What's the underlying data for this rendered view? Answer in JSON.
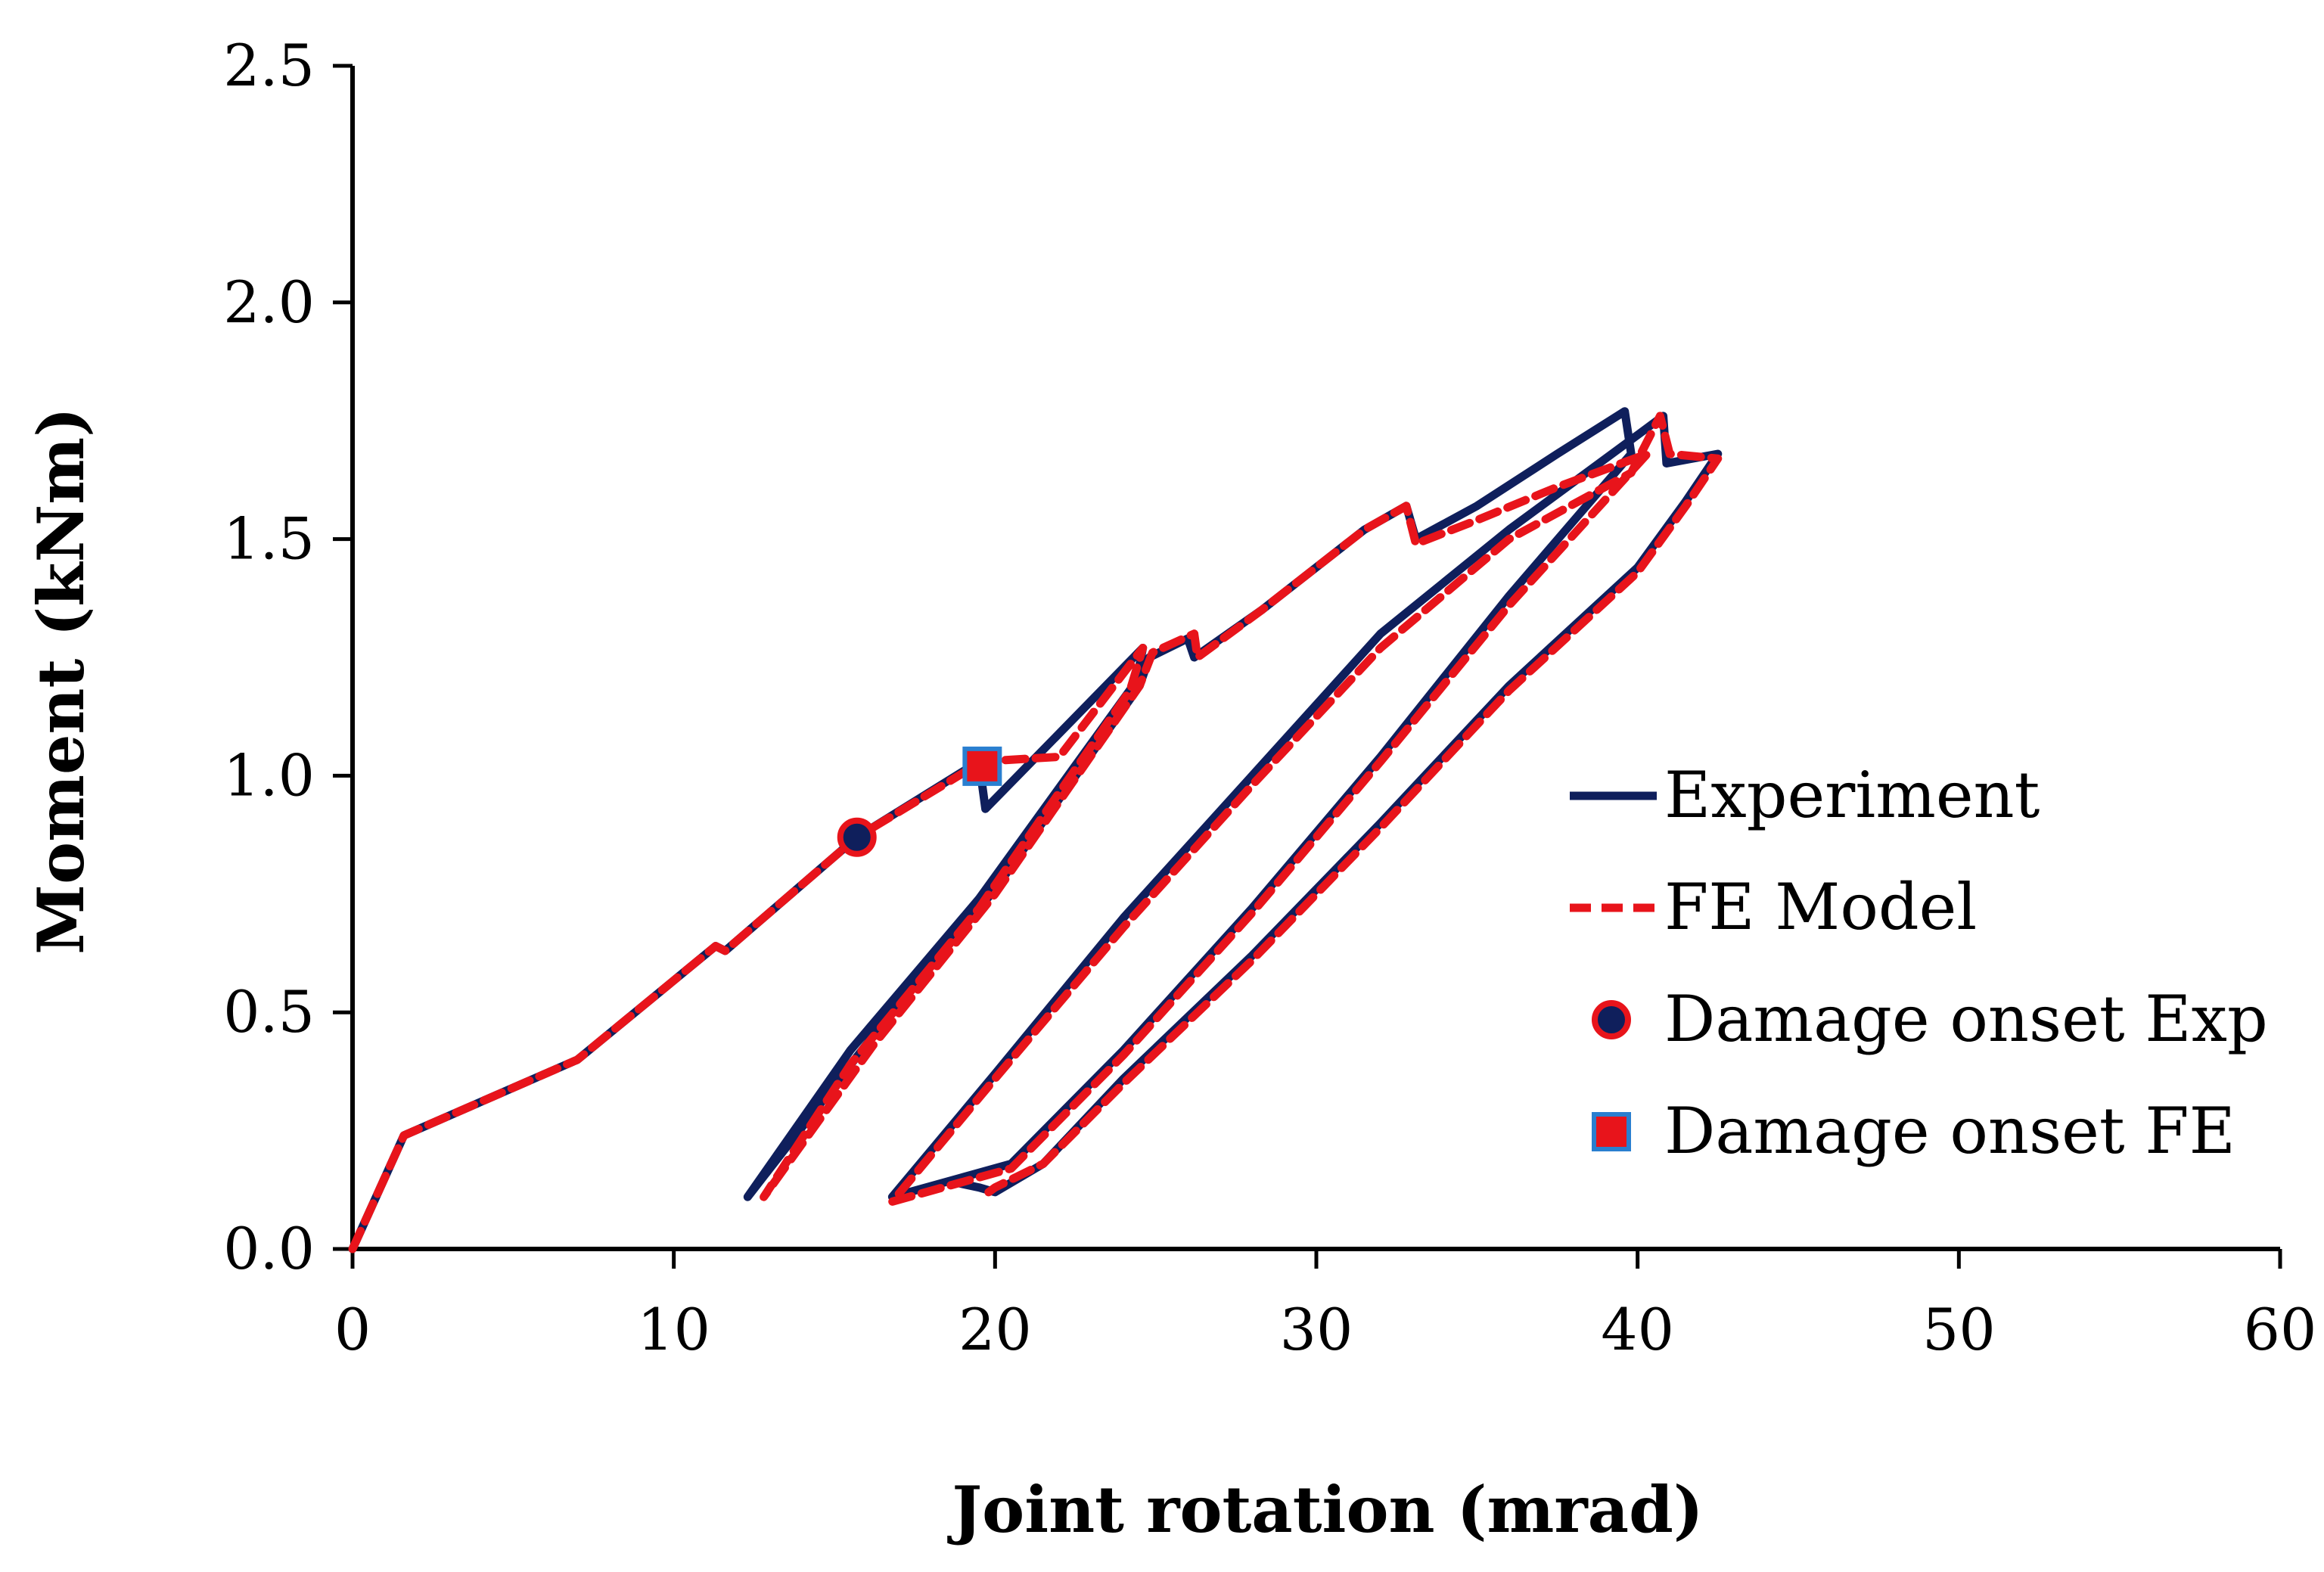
{
  "chart_data": {
    "type": "line",
    "title": "",
    "xlabel": "Joint rotation (mrad)",
    "ylabel": "Moment (kNm)",
    "xlim": [
      0,
      60
    ],
    "ylim": [
      0,
      2.5
    ],
    "xticks": [
      0,
      10,
      20,
      30,
      40,
      50,
      60
    ],
    "xtick_labels": [
      "0",
      "10",
      "20",
      "30",
      "40",
      "50",
      "60"
    ],
    "yticks": [
      0,
      0.5,
      1.0,
      1.5,
      2.0,
      2.5
    ],
    "ytick_labels": [
      "0.0",
      "0.5",
      "1.0",
      "1.5",
      "2.0",
      "2.5"
    ],
    "grid": false,
    "legend_position": "right",
    "series": [
      {
        "name": "Experiment",
        "style": "solid",
        "color": "#0f1f5c",
        "points": [
          [
            0,
            0
          ],
          [
            1.6,
            0.24
          ],
          [
            7,
            0.4
          ],
          [
            11.3,
            0.64
          ],
          [
            11.6,
            0.63
          ],
          [
            15.7,
            0.87
          ],
          [
            19.5,
            1.03
          ],
          [
            19.7,
            0.93
          ],
          [
            24.6,
            1.27
          ],
          [
            24.4,
            1.2
          ],
          [
            19.5,
            0.74
          ],
          [
            15.5,
            0.42
          ],
          [
            12.3,
            0.11
          ],
          [
            16.2,
            0.45
          ],
          [
            20,
            0.76
          ],
          [
            24.5,
            1.19
          ],
          [
            24.8,
            1.25
          ],
          [
            26,
            1.29
          ],
          [
            26.2,
            1.25
          ],
          [
            28.3,
            1.35
          ],
          [
            31.5,
            1.52
          ],
          [
            32.8,
            1.57
          ],
          [
            33.1,
            1.5
          ],
          [
            35,
            1.57
          ],
          [
            37.5,
            1.68
          ],
          [
            39.6,
            1.77
          ],
          [
            39.8,
            1.68
          ],
          [
            36,
            1.38
          ],
          [
            32,
            1.04
          ],
          [
            28,
            0.72
          ],
          [
            24,
            0.42
          ],
          [
            20.5,
            0.18
          ],
          [
            16.8,
            0.11
          ],
          [
            20,
            0.37
          ],
          [
            24,
            0.7
          ],
          [
            28,
            1.0
          ],
          [
            32,
            1.3
          ],
          [
            36,
            1.52
          ],
          [
            40,
            1.72
          ],
          [
            40.8,
            1.76
          ],
          [
            40.9,
            1.66
          ],
          [
            42.5,
            1.68
          ],
          [
            41.5,
            1.58
          ],
          [
            40,
            1.44
          ],
          [
            36,
            1.19
          ],
          [
            32,
            0.9
          ],
          [
            28,
            0.62
          ],
          [
            24,
            0.36
          ],
          [
            21.5,
            0.18
          ],
          [
            20,
            0.12
          ],
          [
            19.5,
            0.13
          ],
          [
            18.8,
            0.14
          ]
        ]
      },
      {
        "name": "FE Model",
        "style": "dashed",
        "color": "#e8141b",
        "points": [
          [
            0,
            0
          ],
          [
            1.6,
            0.24
          ],
          [
            7,
            0.4
          ],
          [
            11.3,
            0.64
          ],
          [
            11.6,
            0.63
          ],
          [
            15.7,
            0.87
          ],
          [
            19.6,
            1.03
          ],
          [
            22,
            1.04
          ],
          [
            24.6,
            1.27
          ],
          [
            24.2,
            1.18
          ],
          [
            19.5,
            0.72
          ],
          [
            15.5,
            0.39
          ],
          [
            12.8,
            0.11
          ],
          [
            16.2,
            0.43
          ],
          [
            20,
            0.75
          ],
          [
            24.5,
            1.19
          ],
          [
            24.9,
            1.26
          ],
          [
            26.2,
            1.3
          ],
          [
            26.3,
            1.25
          ],
          [
            28.3,
            1.35
          ],
          [
            31.5,
            1.52
          ],
          [
            32.8,
            1.57
          ],
          [
            33.1,
            1.49
          ],
          [
            35,
            1.54
          ],
          [
            37.5,
            1.61
          ],
          [
            39.9,
            1.67
          ],
          [
            40.3,
            1.68
          ],
          [
            36,
            1.36
          ],
          [
            32,
            1.03
          ],
          [
            28,
            0.71
          ],
          [
            24,
            0.41
          ],
          [
            20.5,
            0.17
          ],
          [
            16.8,
            0.1
          ],
          [
            20,
            0.36
          ],
          [
            24,
            0.68
          ],
          [
            28,
            0.98
          ],
          [
            32,
            1.27
          ],
          [
            36,
            1.5
          ],
          [
            39.8,
            1.64
          ],
          [
            40.7,
            1.76
          ],
          [
            41,
            1.68
          ],
          [
            42.5,
            1.67
          ],
          [
            41.5,
            1.57
          ],
          [
            40,
            1.43
          ],
          [
            36,
            1.18
          ],
          [
            32,
            0.89
          ],
          [
            28,
            0.61
          ],
          [
            24,
            0.35
          ],
          [
            21.5,
            0.18
          ],
          [
            20,
            0.13
          ],
          [
            19.8,
            0.12
          ]
        ]
      }
    ],
    "markers": [
      {
        "name": "Damage onset Exp",
        "shape": "circle",
        "x": 15.7,
        "y": 0.87,
        "fill": "#0f1f5c",
        "stroke": "#e8141b"
      },
      {
        "name": "Damage onset FE",
        "shape": "square",
        "x": 19.6,
        "y": 1.02,
        "fill": "#e8141b",
        "stroke": "#2a7fd0"
      }
    ],
    "legend": [
      "Experiment",
      "FE Model",
      "Damage onset Exp",
      "Damage onset FE"
    ]
  }
}
